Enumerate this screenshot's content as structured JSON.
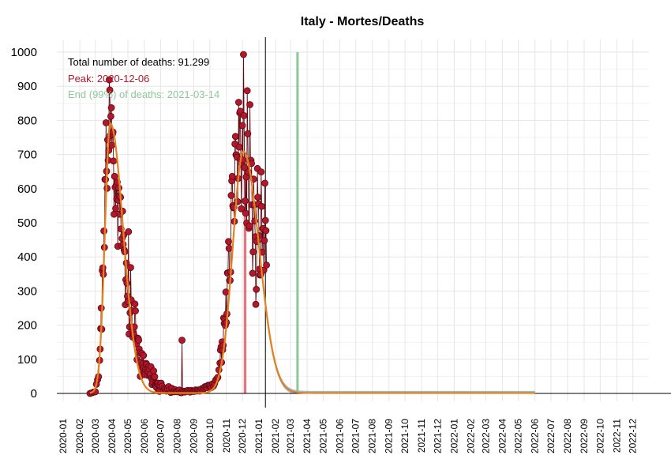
{
  "chart_data": {
    "type": "line",
    "title": "Italy - Mortes/Deaths",
    "xlabel": "",
    "ylabel": "",
    "ylim": [
      0,
      1000
    ],
    "xlim": [
      "2019-12-20",
      "2022-12-31"
    ],
    "grid": true,
    "yticks": [
      "0",
      "100",
      "200",
      "300",
      "400",
      "500",
      "600",
      "700",
      "800",
      "900",
      "1000"
    ],
    "xticks": [
      "2020-01",
      "2020-02",
      "2020-03",
      "2020-04",
      "2020-05",
      "2020-06",
      "2020-07",
      "2020-08",
      "2020-09",
      "2020-10",
      "2020-11",
      "2020-12",
      "2021-01",
      "2021-02",
      "2021-03",
      "2021-04",
      "2021-05",
      "2021-06",
      "2021-07",
      "2021-08",
      "2021-09",
      "2021-10",
      "2021-11",
      "2021-12",
      "2022-01",
      "2022-02",
      "2022-03",
      "2022-04",
      "2022-05",
      "2022-06",
      "2022-07",
      "2022-08",
      "2022-09",
      "2022-10",
      "2022-11",
      "2022-12"
    ],
    "annotations": {
      "total": "Total number of deaths: 91.299",
      "peak": "Peak: 2020-12-06",
      "end": "End (99%) of deaths: 2021-03-14"
    },
    "peak_date": "2020-12-06",
    "end_date": "2021-03-14",
    "current_date": "2021-01-13",
    "colors": {
      "observed": "#b2182b",
      "observed_edge": "#5a0a12",
      "fit": "#e6821e",
      "forecast_band": "#7aa0c8",
      "peak_bar": "#d9636d",
      "end_line": "#8ec79a"
    },
    "series": [
      {
        "type": "observed",
        "points": [
          [
            "2020-02-20",
            0
          ],
          [
            "2020-02-24",
            2
          ],
          [
            "2020-02-27",
            4
          ],
          [
            "2020-03-01",
            5
          ],
          [
            "2020-03-03",
            27
          ],
          [
            "2020-03-05",
            40
          ],
          [
            "2020-03-07",
            49
          ],
          [
            "2020-03-09",
            97
          ],
          [
            "2020-03-10",
            130
          ],
          [
            "2020-03-11",
            190
          ],
          [
            "2020-03-12",
            250
          ],
          [
            "2020-03-13",
            188
          ],
          [
            "2020-03-14",
            360
          ],
          [
            "2020-03-15",
            368
          ],
          [
            "2020-03-16",
            349
          ],
          [
            "2020-03-17",
            476
          ],
          [
            "2020-03-18",
            428
          ],
          [
            "2020-03-19",
            627
          ],
          [
            "2020-03-20",
            627
          ],
          [
            "2020-03-21",
            793
          ],
          [
            "2020-03-22",
            651
          ],
          [
            "2020-03-23",
            601
          ],
          [
            "2020-03-24",
            743
          ],
          [
            "2020-03-25",
            683
          ],
          [
            "2020-03-26",
            712
          ],
          [
            "2020-03-27",
            919
          ],
          [
            "2020-03-28",
            889
          ],
          [
            "2020-03-29",
            756
          ],
          [
            "2020-03-30",
            812
          ],
          [
            "2020-03-31",
            837
          ],
          [
            "2020-04-01",
            727
          ],
          [
            "2020-04-02",
            760
          ],
          [
            "2020-04-03",
            766
          ],
          [
            "2020-04-04",
            681
          ],
          [
            "2020-04-05",
            525
          ],
          [
            "2020-04-06",
            636
          ],
          [
            "2020-04-07",
            604
          ],
          [
            "2020-04-08",
            542
          ],
          [
            "2020-04-09",
            610
          ],
          [
            "2020-04-10",
            570
          ],
          [
            "2020-04-11",
            619
          ],
          [
            "2020-04-12",
            431
          ],
          [
            "2020-04-13",
            566
          ],
          [
            "2020-04-14",
            602
          ],
          [
            "2020-04-15",
            578
          ],
          [
            "2020-04-16",
            525
          ],
          [
            "2020-04-17",
            575
          ],
          [
            "2020-04-18",
            482
          ],
          [
            "2020-04-19",
            433
          ],
          [
            "2020-04-20",
            454
          ],
          [
            "2020-04-21",
            534
          ],
          [
            "2020-04-22",
            437
          ],
          [
            "2020-04-23",
            464
          ],
          [
            "2020-04-24",
            420
          ],
          [
            "2020-04-25",
            415
          ],
          [
            "2020-04-26",
            260
          ],
          [
            "2020-04-27",
            333
          ],
          [
            "2020-04-28",
            382
          ],
          [
            "2020-04-29",
            323
          ],
          [
            "2020-04-30",
            285
          ],
          [
            "2020-05-01",
            269
          ],
          [
            "2020-05-02",
            474
          ],
          [
            "2020-05-03",
            174
          ],
          [
            "2020-05-04",
            195
          ],
          [
            "2020-05-05",
            236
          ],
          [
            "2020-05-06",
            369
          ],
          [
            "2020-05-07",
            274
          ],
          [
            "2020-05-08",
            243
          ],
          [
            "2020-05-09",
            194
          ],
          [
            "2020-05-10",
            165
          ],
          [
            "2020-05-11",
            179
          ],
          [
            "2020-05-12",
            172
          ],
          [
            "2020-05-13",
            195
          ],
          [
            "2020-05-14",
            262
          ],
          [
            "2020-05-15",
            242
          ],
          [
            "2020-05-16",
            153
          ],
          [
            "2020-05-17",
            145
          ],
          [
            "2020-05-18",
            99
          ],
          [
            "2020-05-19",
            162
          ],
          [
            "2020-05-20",
            161
          ],
          [
            "2020-05-21",
            156
          ],
          [
            "2020-05-22",
            130
          ],
          [
            "2020-05-23",
            119
          ],
          [
            "2020-05-24",
            50
          ],
          [
            "2020-05-25",
            92
          ],
          [
            "2020-05-26",
            78
          ],
          [
            "2020-05-27",
            117
          ],
          [
            "2020-05-28",
            70
          ],
          [
            "2020-05-29",
            87
          ],
          [
            "2020-05-30",
            111
          ],
          [
            "2020-05-31",
            75
          ],
          [
            "2020-06-01",
            60
          ],
          [
            "2020-06-02",
            55
          ],
          [
            "2020-06-03",
            71
          ],
          [
            "2020-06-04",
            88
          ],
          [
            "2020-06-05",
            85
          ],
          [
            "2020-06-06",
            72
          ],
          [
            "2020-06-07",
            53
          ],
          [
            "2020-06-08",
            65
          ],
          [
            "2020-06-09",
            79
          ],
          [
            "2020-06-10",
            71
          ],
          [
            "2020-06-11",
            53
          ],
          [
            "2020-06-12",
            56
          ],
          [
            "2020-06-13",
            78
          ],
          [
            "2020-06-14",
            44
          ],
          [
            "2020-06-15",
            26
          ],
          [
            "2020-06-16",
            34
          ],
          [
            "2020-06-17",
            43
          ],
          [
            "2020-06-18",
            66
          ],
          [
            "2020-06-19",
            47
          ],
          [
            "2020-06-20",
            49
          ],
          [
            "2020-06-21",
            24
          ],
          [
            "2020-06-22",
            23
          ],
          [
            "2020-06-23",
            18
          ],
          [
            "2020-06-24",
            30
          ],
          [
            "2020-06-25",
            30
          ],
          [
            "2020-06-26",
            30
          ],
          [
            "2020-06-27",
            8
          ],
          [
            "2020-06-28",
            24
          ],
          [
            "2020-06-29",
            6
          ],
          [
            "2020-06-30",
            23
          ],
          [
            "2020-07-02",
            30
          ],
          [
            "2020-07-04",
            21
          ],
          [
            "2020-07-06",
            8
          ],
          [
            "2020-07-08",
            15
          ],
          [
            "2020-07-10",
            12
          ],
          [
            "2020-07-12",
            7
          ],
          [
            "2020-07-14",
            13
          ],
          [
            "2020-07-16",
            20
          ],
          [
            "2020-07-18",
            11
          ],
          [
            "2020-07-20",
            3
          ],
          [
            "2020-07-22",
            15
          ],
          [
            "2020-07-24",
            5
          ],
          [
            "2020-07-26",
            5
          ],
          [
            "2020-07-28",
            11
          ],
          [
            "2020-07-30",
            6
          ],
          [
            "2020-08-01",
            5
          ],
          [
            "2020-08-03",
            8
          ],
          [
            "2020-08-05",
            10
          ],
          [
            "2020-08-07",
            3
          ],
          [
            "2020-08-09",
            2
          ],
          [
            "2020-08-10",
            156
          ],
          [
            "2020-08-11",
            7
          ],
          [
            "2020-08-13",
            6
          ],
          [
            "2020-08-15",
            4
          ],
          [
            "2020-08-17",
            7
          ],
          [
            "2020-08-19",
            6
          ],
          [
            "2020-08-21",
            9
          ],
          [
            "2020-08-23",
            7
          ],
          [
            "2020-08-25",
            4
          ],
          [
            "2020-08-27",
            9
          ],
          [
            "2020-08-29",
            6
          ],
          [
            "2020-08-31",
            6
          ],
          [
            "2020-09-02",
            6
          ],
          [
            "2020-09-04",
            10
          ],
          [
            "2020-09-06",
            7
          ],
          [
            "2020-09-08",
            10
          ],
          [
            "2020-09-10",
            10
          ],
          [
            "2020-09-12",
            7
          ],
          [
            "2020-09-14",
            9
          ],
          [
            "2020-09-16",
            14
          ],
          [
            "2020-09-18",
            10
          ],
          [
            "2020-09-20",
            15
          ],
          [
            "2020-09-22",
            20
          ],
          [
            "2020-09-24",
            20
          ],
          [
            "2020-09-26",
            17
          ],
          [
            "2020-09-28",
            24
          ],
          [
            "2020-09-30",
            24
          ],
          [
            "2020-10-02",
            23
          ],
          [
            "2020-10-04",
            17
          ],
          [
            "2020-10-06",
            28
          ],
          [
            "2020-10-08",
            22
          ],
          [
            "2020-10-10",
            29
          ],
          [
            "2020-10-12",
            39
          ],
          [
            "2020-10-14",
            43
          ],
          [
            "2020-10-16",
            47
          ],
          [
            "2020-10-18",
            69
          ],
          [
            "2020-10-20",
            89
          ],
          [
            "2020-10-21",
            127
          ],
          [
            "2020-10-22",
            136
          ],
          [
            "2020-10-23",
            91
          ],
          [
            "2020-10-24",
            151
          ],
          [
            "2020-10-25",
            128
          ],
          [
            "2020-10-26",
            141
          ],
          [
            "2020-10-27",
            221
          ],
          [
            "2020-10-28",
            205
          ],
          [
            "2020-10-29",
            217
          ],
          [
            "2020-10-30",
            199
          ],
          [
            "2020-10-31",
            297
          ],
          [
            "2020-11-01",
            208
          ],
          [
            "2020-11-02",
            233
          ],
          [
            "2020-11-03",
            353
          ],
          [
            "2020-11-04",
            352
          ],
          [
            "2020-11-05",
            445
          ],
          [
            "2020-11-06",
            425
          ],
          [
            "2020-11-07",
            331
          ],
          [
            "2020-11-08",
            331
          ],
          [
            "2020-11-09",
            356
          ],
          [
            "2020-11-10",
            580
          ],
          [
            "2020-11-11",
            623
          ],
          [
            "2020-11-12",
            636
          ],
          [
            "2020-11-13",
            550
          ],
          [
            "2020-11-14",
            544
          ],
          [
            "2020-11-15",
            546
          ],
          [
            "2020-11-16",
            504
          ],
          [
            "2020-11-17",
            731
          ],
          [
            "2020-11-18",
            753
          ],
          [
            "2020-11-19",
            699
          ],
          [
            "2020-11-20",
            699
          ],
          [
            "2020-11-21",
            692
          ],
          [
            "2020-11-22",
            562
          ],
          [
            "2020-11-23",
            630
          ],
          [
            "2020-11-24",
            853
          ],
          [
            "2020-11-25",
            722
          ],
          [
            "2020-11-26",
            822
          ],
          [
            "2020-11-27",
            827
          ],
          [
            "2020-11-28",
            686
          ],
          [
            "2020-11-29",
            541
          ],
          [
            "2020-11-30",
            672
          ],
          [
            "2020-12-01",
            785
          ],
          [
            "2020-12-02",
            684
          ],
          [
            "2020-12-03",
            993
          ],
          [
            "2020-12-04",
            814
          ],
          [
            "2020-12-05",
            662
          ],
          [
            "2020-12-06",
            564
          ],
          [
            "2020-12-07",
            528
          ],
          [
            "2020-12-08",
            634
          ],
          [
            "2020-12-09",
            499
          ],
          [
            "2020-12-10",
            887
          ],
          [
            "2020-12-11",
            761
          ],
          [
            "2020-12-12",
            649
          ],
          [
            "2020-12-13",
            484
          ],
          [
            "2020-12-14",
            491
          ],
          [
            "2020-12-15",
            846
          ],
          [
            "2020-12-16",
            680
          ],
          [
            "2020-12-17",
            683
          ],
          [
            "2020-12-18",
            674
          ],
          [
            "2020-12-19",
            553
          ],
          [
            "2020-12-20",
            352
          ],
          [
            "2020-12-21",
            415
          ],
          [
            "2020-12-22",
            628
          ],
          [
            "2020-12-23",
            553
          ],
          [
            "2020-12-24",
            505
          ],
          [
            "2020-12-25",
            459
          ],
          [
            "2020-12-26",
            261
          ],
          [
            "2020-12-27",
            305
          ],
          [
            "2020-12-28",
            445
          ],
          [
            "2020-12-29",
            659
          ],
          [
            "2020-12-30",
            575
          ],
          [
            "2020-12-31",
            555
          ],
          [
            "2021-01-01",
            462
          ],
          [
            "2021-01-02",
            364
          ],
          [
            "2021-01-03",
            347
          ],
          [
            "2021-01-04",
            348
          ],
          [
            "2021-01-05",
            649
          ],
          [
            "2021-01-06",
            548
          ],
          [
            "2021-01-07",
            414
          ],
          [
            "2021-01-08",
            483
          ],
          [
            "2021-01-09",
            483
          ],
          [
            "2021-01-10",
            361
          ],
          [
            "2021-01-11",
            448
          ],
          [
            "2021-01-12",
            616
          ],
          [
            "2021-01-13",
            507
          ],
          [
            "2021-01-14",
            477
          ],
          [
            "2021-01-15",
            376
          ]
        ]
      },
      {
        "type": "fit",
        "waves": [
          {
            "amplitude": 790,
            "peak": "2020-03-29",
            "sigma_left": 10,
            "sigma_right": 24
          },
          {
            "amplitude": 708,
            "peak": "2020-12-03",
            "sigma_left": 20,
            "sigma_right": 29
          }
        ],
        "tail_floor": 1.2,
        "fit_end": "2022-06-01"
      }
    ]
  }
}
